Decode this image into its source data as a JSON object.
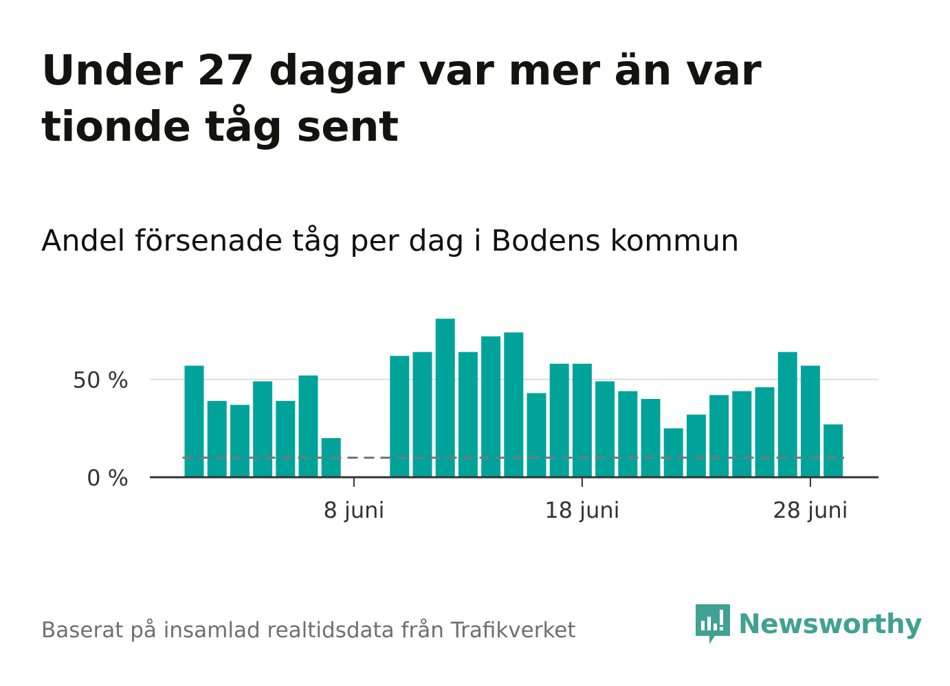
{
  "title": "Under 27 dagar var mer än var tionde tåg sent",
  "subtitle": "Andel försenade tåg per dag i Bodens kommun",
  "source": "Baserat på insamlad realtidsdata från Trafikverket",
  "brand": {
    "name": "Newsworthy",
    "icon": "newsworthy-logo-icon",
    "color": "#41a193"
  },
  "colors": {
    "bar": "#00a39a",
    "axis": "#333333",
    "grid": "#dddddd",
    "reference_line": "#777777"
  },
  "chart_data": {
    "type": "bar",
    "title": "Under 27 dagar var mer än var tionde tåg sent",
    "subtitle": "Andel försenade tåg per dag i Bodens kommun",
    "xlabel": "",
    "ylabel": "",
    "x": [
      "1 juni",
      "2 juni",
      "3 juni",
      "4 juni",
      "5 juni",
      "6 juni",
      "7 juni",
      "8 juni",
      "9 juni",
      "10 juni",
      "11 juni",
      "12 juni",
      "13 juni",
      "14 juni",
      "15 juni",
      "16 juni",
      "17 juni",
      "18 juni",
      "19 juni",
      "20 juni",
      "21 juni",
      "22 juni",
      "23 juni",
      "24 juni",
      "25 juni",
      "26 juni",
      "27 juni",
      "28 juni",
      "29 juni"
    ],
    "values": [
      57,
      39,
      37,
      49,
      39,
      52,
      20,
      null,
      null,
      62,
      64,
      81,
      64,
      72,
      74,
      43,
      58,
      58,
      49,
      44,
      40,
      25,
      32,
      42,
      44,
      46,
      64,
      57,
      27
    ],
    "reference_value": 10,
    "ylim": [
      0,
      85
    ],
    "yticks": [
      0,
      50
    ],
    "ytick_labels": [
      "0 %",
      "50 %"
    ],
    "xtick_labels": [
      {
        "x": "8 juni",
        "label": "8 juni"
      },
      {
        "x": "18 juni",
        "label": "18 juni"
      },
      {
        "x": "28 juni",
        "label": "28 juni"
      }
    ],
    "grid": true,
    "legend": "none"
  }
}
